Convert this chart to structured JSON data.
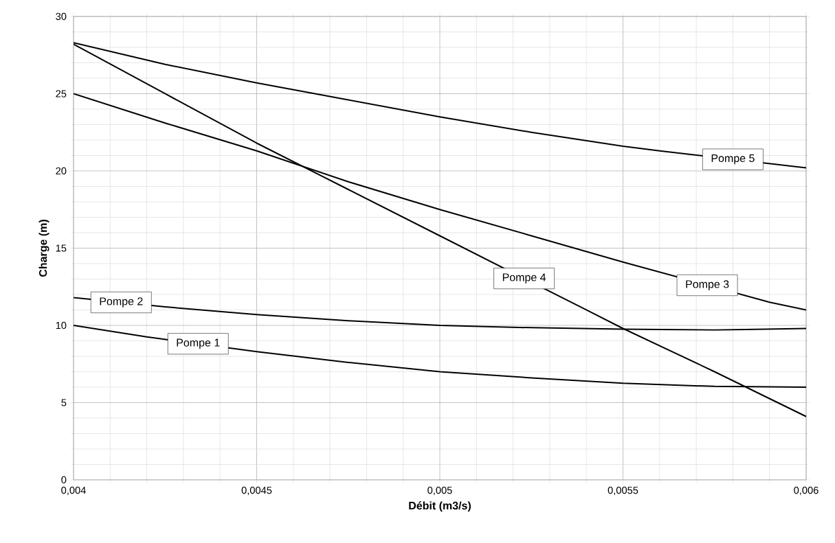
{
  "chart_data": {
    "type": "line",
    "xlabel": "Débit (m3/s)",
    "ylabel": "Charge (m)",
    "x": [
      0.004,
      0.00425,
      0.0045,
      0.00475,
      0.005,
      0.00525,
      0.0055,
      0.00575,
      0.006
    ],
    "series": [
      {
        "color": "#000000",
        "x": [
          0.004,
          0.0042,
          0.0045,
          0.00475,
          0.005,
          0.00525,
          0.0055,
          0.00575,
          0.006
        ],
        "values": [
          10,
          9.25,
          8.3,
          7.6,
          7.0,
          6.6,
          6.25,
          6.05,
          6.0
        ]
      },
      {
        "color": "#000000",
        "values": [
          11.8,
          11.2,
          10.7,
          10.3,
          10.0,
          9.85,
          9.75,
          9.7,
          9.8
        ]
      },
      {
        "color": "#000000",
        "x": [
          0.004,
          0.00425,
          0.0045,
          0.00475,
          0.005,
          0.00525,
          0.0055,
          0.0059,
          0.006
        ],
        "values": [
          25,
          23.1,
          21.3,
          19.3,
          17.5,
          15.8,
          14.1,
          11.5,
          11.0
        ]
      },
      {
        "color": "#000000",
        "x": [
          0.004,
          0.00425,
          0.0045,
          0.00475,
          0.005,
          0.0054,
          0.0055,
          0.00575,
          0.006
        ],
        "values": [
          28.2,
          25.0,
          21.8,
          18.8,
          15.8,
          11.0,
          9.8,
          7.0,
          4.1
        ]
      },
      {
        "color": "#000000",
        "x": [
          0.004,
          0.00425,
          0.0045,
          0.00475,
          0.005,
          0.00525,
          0.0055,
          0.0056,
          0.006
        ],
        "values": [
          28.3,
          26.9,
          25.7,
          24.6,
          23.5,
          22.5,
          21.6,
          21.3,
          20.2
        ]
      }
    ],
    "annotations": [
      {
        "text": "Pompe 1",
        "x": 0.00434,
        "y": 8.81
      },
      {
        "text": "Pompe 2",
        "x": 0.00413,
        "y": 11.49
      },
      {
        "text": "Pompe 3",
        "x": 0.00573,
        "y": 12.6
      },
      {
        "text": "Pompe 4",
        "x": 0.00523,
        "y": 13.04
      },
      {
        "text": "Pompe 5",
        "x": 0.0058,
        "y": 20.75
      }
    ],
    "xlim": [
      0.004,
      0.006
    ],
    "ylim": [
      0,
      30
    ],
    "xticks": [
      {
        "value": 0.004,
        "label": "0,004"
      },
      {
        "value": 0.0045,
        "label": "0,0045"
      },
      {
        "value": 0.005,
        "label": "0,005"
      },
      {
        "value": 0.0055,
        "label": "0,0055"
      },
      {
        "value": 0.006,
        "label": "0,006"
      }
    ],
    "yticks": [
      0,
      5,
      10,
      15,
      20,
      25,
      30
    ],
    "grid": true,
    "marker": "none",
    "line_style": "solid"
  }
}
